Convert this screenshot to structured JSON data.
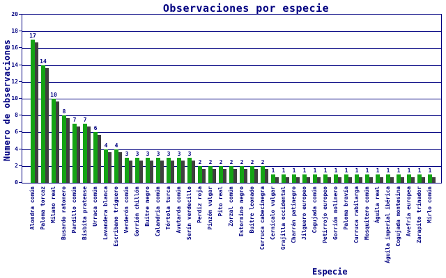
{
  "chart_data": {
    "type": "bar",
    "title": "Observaciones por especie",
    "xlabel": "Especie",
    "ylabel": "Numero de observaciones",
    "ylim": [
      0,
      20
    ],
    "y_ticks": [
      0,
      2,
      4,
      6,
      8,
      10,
      12,
      14,
      16,
      18,
      20
    ],
    "grid": true,
    "legend": "none",
    "colors": {
      "bar": "#14a314",
      "bar_shadow": "#3f3f3f",
      "axis_text": "#000080",
      "background": "#ffffff"
    },
    "categories": [
      "Alondra común",
      "Paloma torcaz",
      "Milano real",
      "Busardo ratonero",
      "Pardillo común",
      "Bisbita pratense",
      "Urraca común",
      "Lavandera blanca",
      "Escribano triguero",
      "Verderón común",
      "Gorrión chillón",
      "Buitre negro",
      "Calandria común",
      "Tórtola turca",
      "Avutarda común",
      "Serín verdecillo",
      "Perdiz roja",
      "Pinzón vulgar",
      "Pito real",
      "Zorzal común",
      "Estornino negro",
      "Buitre leonado",
      "Curruca cabecinegra",
      "Cernícalo vulgar",
      "Grajilla occidental",
      "Charrán patinegro",
      "Jilguero europeo",
      "Cogujada común",
      "Petirrojo europeo",
      "Gorrión molinero",
      "Paloma bravía",
      "Curruca rabilarga",
      "Mosquitero común",
      "Águila real",
      "Águila imperial ibérica",
      "Cogujada montesina",
      "Avefría europea",
      "Zarapito trinador",
      "Mirlo común"
    ],
    "values": [
      17,
      14,
      10,
      8,
      7,
      7,
      6,
      4,
      4,
      3,
      3,
      3,
      3,
      3,
      3,
      3,
      2,
      2,
      2,
      2,
      2,
      2,
      2,
      1,
      1,
      1,
      1,
      1,
      1,
      1,
      1,
      1,
      1,
      1,
      1,
      1,
      1,
      1,
      1
    ]
  }
}
